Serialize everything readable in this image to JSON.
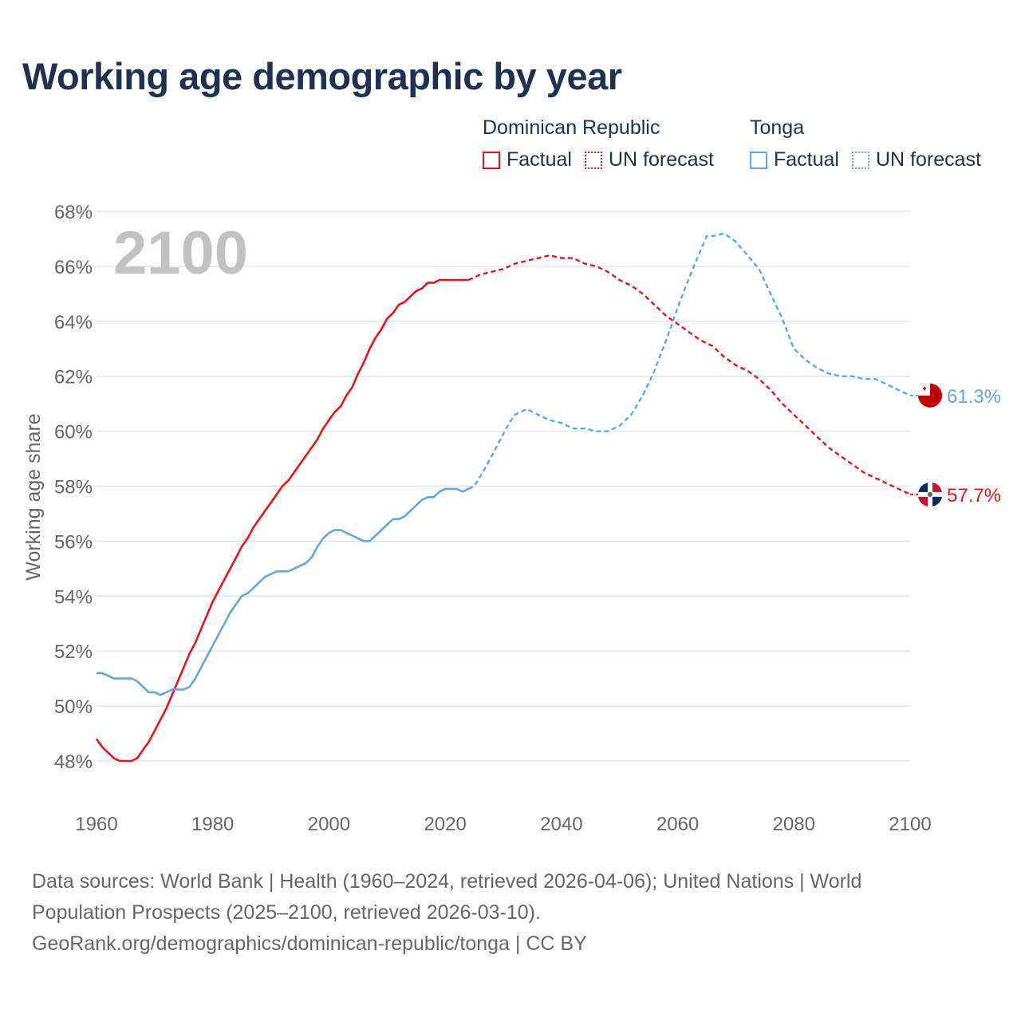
{
  "title": "Working age demographic by year",
  "legend": {
    "groups": [
      {
        "name": "Dominican Republic",
        "color": "#e8161b",
        "factual_label": "Factual",
        "forecast_label": "UN forecast"
      },
      {
        "name": "Tonga",
        "color": "#5fa8e2",
        "factual_label": "Factual",
        "forecast_label": "UN forecast"
      }
    ]
  },
  "source": {
    "line1": "Data sources: World Bank | Health (1960–2024, retrieved 2026-04-06); United Nations | World",
    "line2": "Population Prospects (2025–2100, retrieved 2026-03-10).",
    "line3": "GeoRank.org/demographics/dominican-republic/tonga | CC BY"
  },
  "chart_data": {
    "type": "line",
    "title": "Working age demographic by year",
    "year_watermark": "2100",
    "xlabel": "",
    "ylabel": "Working age share",
    "xlim": [
      1960,
      2100
    ],
    "ylim": [
      47,
      68
    ],
    "xticks": [
      1960,
      1980,
      2000,
      2020,
      2040,
      2060,
      2080,
      2100
    ],
    "xtick_labels": [
      "1960",
      "1980",
      "2000",
      "2020",
      "2040",
      "2060",
      "2080",
      "2100"
    ],
    "yticks": [
      48,
      50,
      52,
      54,
      56,
      58,
      60,
      62,
      64,
      66,
      68
    ],
    "ytick_labels": [
      "48%",
      "50%",
      "52%",
      "54%",
      "56%",
      "58%",
      "60%",
      "62%",
      "64%",
      "66%",
      "68%"
    ],
    "factual_range": [
      1960,
      2024
    ],
    "forecast_range": [
      2024,
      2100
    ],
    "series": [
      {
        "name": "Dominican Republic",
        "color": "#e8161b",
        "end_label": "57.7%",
        "end_value": 57.7,
        "points": [
          [
            1960,
            48.8
          ],
          [
            1961,
            48.5
          ],
          [
            1962,
            48.3
          ],
          [
            1963,
            48.1
          ],
          [
            1964,
            48.0
          ],
          [
            1965,
            48.0
          ],
          [
            1966,
            48.0
          ],
          [
            1967,
            48.1
          ],
          [
            1968,
            48.4
          ],
          [
            1969,
            48.7
          ],
          [
            1970,
            49.1
          ],
          [
            1971,
            49.5
          ],
          [
            1972,
            49.9
          ],
          [
            1973,
            50.4
          ],
          [
            1974,
            50.9
          ],
          [
            1975,
            51.4
          ],
          [
            1976,
            51.9
          ],
          [
            1977,
            52.3
          ],
          [
            1978,
            52.8
          ],
          [
            1979,
            53.3
          ],
          [
            1980,
            53.8
          ],
          [
            1981,
            54.2
          ],
          [
            1982,
            54.6
          ],
          [
            1983,
            55.0
          ],
          [
            1984,
            55.4
          ],
          [
            1985,
            55.8
          ],
          [
            1986,
            56.1
          ],
          [
            1987,
            56.5
          ],
          [
            1988,
            56.8
          ],
          [
            1989,
            57.1
          ],
          [
            1990,
            57.4
          ],
          [
            1991,
            57.7
          ],
          [
            1992,
            58.0
          ],
          [
            1993,
            58.2
          ],
          [
            1994,
            58.5
          ],
          [
            1995,
            58.8
          ],
          [
            1996,
            59.1
          ],
          [
            1997,
            59.4
          ],
          [
            1998,
            59.7
          ],
          [
            1999,
            60.1
          ],
          [
            2000,
            60.4
          ],
          [
            2001,
            60.7
          ],
          [
            2002,
            60.9
          ],
          [
            2003,
            61.3
          ],
          [
            2004,
            61.6
          ],
          [
            2005,
            62.1
          ],
          [
            2006,
            62.5
          ],
          [
            2007,
            63.0
          ],
          [
            2008,
            63.4
          ],
          [
            2009,
            63.7
          ],
          [
            2010,
            64.1
          ],
          [
            2011,
            64.3
          ],
          [
            2012,
            64.6
          ],
          [
            2013,
            64.7
          ],
          [
            2014,
            64.9
          ],
          [
            2015,
            65.1
          ],
          [
            2016,
            65.2
          ],
          [
            2017,
            65.4
          ],
          [
            2018,
            65.4
          ],
          [
            2019,
            65.5
          ],
          [
            2020,
            65.5
          ],
          [
            2021,
            65.5
          ],
          [
            2022,
            65.5
          ],
          [
            2023,
            65.5
          ],
          [
            2024,
            65.5
          ],
          [
            2026,
            65.7
          ],
          [
            2028,
            65.8
          ],
          [
            2030,
            65.9
          ],
          [
            2032,
            66.1
          ],
          [
            2034,
            66.2
          ],
          [
            2036,
            66.3
          ],
          [
            2038,
            66.4
          ],
          [
            2040,
            66.3
          ],
          [
            2042,
            66.3
          ],
          [
            2044,
            66.1
          ],
          [
            2046,
            66.0
          ],
          [
            2048,
            65.8
          ],
          [
            2050,
            65.5
          ],
          [
            2052,
            65.3
          ],
          [
            2054,
            65.0
          ],
          [
            2056,
            64.6
          ],
          [
            2058,
            64.2
          ],
          [
            2060,
            63.9
          ],
          [
            2062,
            63.6
          ],
          [
            2064,
            63.3
          ],
          [
            2066,
            63.1
          ],
          [
            2068,
            62.7
          ],
          [
            2070,
            62.4
          ],
          [
            2072,
            62.2
          ],
          [
            2074,
            61.9
          ],
          [
            2076,
            61.5
          ],
          [
            2078,
            61.0
          ],
          [
            2080,
            60.6
          ],
          [
            2082,
            60.2
          ],
          [
            2084,
            59.8
          ],
          [
            2086,
            59.4
          ],
          [
            2088,
            59.1
          ],
          [
            2090,
            58.8
          ],
          [
            2092,
            58.5
          ],
          [
            2094,
            58.3
          ],
          [
            2096,
            58.1
          ],
          [
            2098,
            57.9
          ],
          [
            2100,
            57.7
          ]
        ]
      },
      {
        "name": "Tonga",
        "color": "#5fa8e2",
        "end_label": "61.3%",
        "end_value": 61.3,
        "points": [
          [
            1960,
            51.2
          ],
          [
            1961,
            51.2
          ],
          [
            1962,
            51.1
          ],
          [
            1963,
            51.0
          ],
          [
            1964,
            51.0
          ],
          [
            1965,
            51.0
          ],
          [
            1966,
            51.0
          ],
          [
            1967,
            50.9
          ],
          [
            1968,
            50.7
          ],
          [
            1969,
            50.5
          ],
          [
            1970,
            50.5
          ],
          [
            1971,
            50.4
          ],
          [
            1972,
            50.5
          ],
          [
            1973,
            50.6
          ],
          [
            1974,
            50.6
          ],
          [
            1975,
            50.6
          ],
          [
            1976,
            50.7
          ],
          [
            1977,
            51.0
          ],
          [
            1978,
            51.4
          ],
          [
            1979,
            51.8
          ],
          [
            1980,
            52.2
          ],
          [
            1981,
            52.6
          ],
          [
            1982,
            53.0
          ],
          [
            1983,
            53.4
          ],
          [
            1984,
            53.7
          ],
          [
            1985,
            54.0
          ],
          [
            1986,
            54.1
          ],
          [
            1987,
            54.3
          ],
          [
            1988,
            54.5
          ],
          [
            1989,
            54.7
          ],
          [
            1990,
            54.8
          ],
          [
            1991,
            54.9
          ],
          [
            1992,
            54.9
          ],
          [
            1993,
            54.9
          ],
          [
            1994,
            55.0
          ],
          [
            1995,
            55.1
          ],
          [
            1996,
            55.2
          ],
          [
            1997,
            55.4
          ],
          [
            1998,
            55.8
          ],
          [
            1999,
            56.1
          ],
          [
            2000,
            56.3
          ],
          [
            2001,
            56.4
          ],
          [
            2002,
            56.4
          ],
          [
            2003,
            56.3
          ],
          [
            2004,
            56.2
          ],
          [
            2005,
            56.1
          ],
          [
            2006,
            56.0
          ],
          [
            2007,
            56.0
          ],
          [
            2008,
            56.2
          ],
          [
            2009,
            56.4
          ],
          [
            2010,
            56.6
          ],
          [
            2011,
            56.8
          ],
          [
            2012,
            56.8
          ],
          [
            2013,
            56.9
          ],
          [
            2014,
            57.1
          ],
          [
            2015,
            57.3
          ],
          [
            2016,
            57.5
          ],
          [
            2017,
            57.6
          ],
          [
            2018,
            57.6
          ],
          [
            2019,
            57.8
          ],
          [
            2020,
            57.9
          ],
          [
            2021,
            57.9
          ],
          [
            2022,
            57.9
          ],
          [
            2023,
            57.8
          ],
          [
            2024,
            57.9
          ],
          [
            2025,
            58.0
          ],
          [
            2027,
            58.7
          ],
          [
            2029,
            59.5
          ],
          [
            2031,
            60.3
          ],
          [
            2032,
            60.6
          ],
          [
            2034,
            60.8
          ],
          [
            2036,
            60.6
          ],
          [
            2038,
            60.4
          ],
          [
            2040,
            60.3
          ],
          [
            2042,
            60.1
          ],
          [
            2044,
            60.1
          ],
          [
            2046,
            60.0
          ],
          [
            2048,
            60.0
          ],
          [
            2050,
            60.2
          ],
          [
            2052,
            60.6
          ],
          [
            2054,
            61.3
          ],
          [
            2056,
            62.2
          ],
          [
            2058,
            63.3
          ],
          [
            2060,
            64.5
          ],
          [
            2062,
            65.6
          ],
          [
            2064,
            66.6
          ],
          [
            2065,
            67.1
          ],
          [
            2066,
            67.1
          ],
          [
            2068,
            67.2
          ],
          [
            2070,
            66.9
          ],
          [
            2072,
            66.4
          ],
          [
            2074,
            65.9
          ],
          [
            2076,
            65.0
          ],
          [
            2078,
            64.1
          ],
          [
            2080,
            63.0
          ],
          [
            2082,
            62.6
          ],
          [
            2084,
            62.3
          ],
          [
            2086,
            62.1
          ],
          [
            2088,
            62.0
          ],
          [
            2090,
            62.0
          ],
          [
            2092,
            61.9
          ],
          [
            2094,
            61.9
          ],
          [
            2096,
            61.7
          ],
          [
            2098,
            61.5
          ],
          [
            2100,
            61.3
          ]
        ]
      }
    ]
  }
}
